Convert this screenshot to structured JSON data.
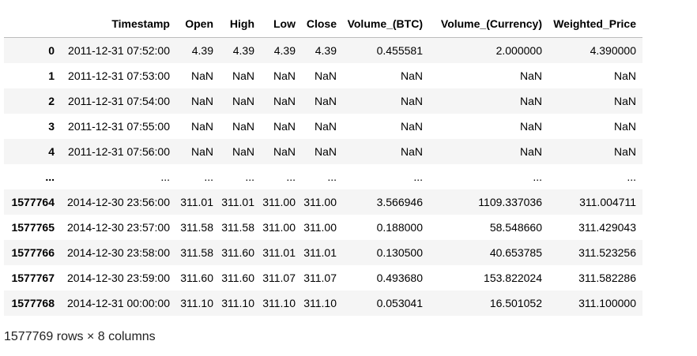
{
  "dataframe": {
    "columns": [
      "",
      "Timestamp",
      "Open",
      "High",
      "Low",
      "Close",
      "Volume_(BTC)",
      "Volume_(Currency)",
      "Weighted_Price"
    ],
    "rows": [
      [
        "0",
        "2011-12-31 07:52:00",
        "4.39",
        "4.39",
        "4.39",
        "4.39",
        "0.455581",
        "2.000000",
        "4.390000"
      ],
      [
        "1",
        "2011-12-31 07:53:00",
        "NaN",
        "NaN",
        "NaN",
        "NaN",
        "NaN",
        "NaN",
        "NaN"
      ],
      [
        "2",
        "2011-12-31 07:54:00",
        "NaN",
        "NaN",
        "NaN",
        "NaN",
        "NaN",
        "NaN",
        "NaN"
      ],
      [
        "3",
        "2011-12-31 07:55:00",
        "NaN",
        "NaN",
        "NaN",
        "NaN",
        "NaN",
        "NaN",
        "NaN"
      ],
      [
        "4",
        "2011-12-31 07:56:00",
        "NaN",
        "NaN",
        "NaN",
        "NaN",
        "NaN",
        "NaN",
        "NaN"
      ],
      [
        "...",
        "...",
        "...",
        "...",
        "...",
        "...",
        "...",
        "...",
        "..."
      ],
      [
        "1577764",
        "2014-12-30 23:56:00",
        "311.01",
        "311.01",
        "311.00",
        "311.00",
        "3.566946",
        "1109.337036",
        "311.004711"
      ],
      [
        "1577765",
        "2014-12-30 23:57:00",
        "311.58",
        "311.58",
        "311.00",
        "311.00",
        "0.188000",
        "58.548660",
        "311.429043"
      ],
      [
        "1577766",
        "2014-12-30 23:58:00",
        "311.58",
        "311.60",
        "311.01",
        "311.01",
        "0.130500",
        "40.653785",
        "311.523256"
      ],
      [
        "1577767",
        "2014-12-30 23:59:00",
        "311.60",
        "311.60",
        "311.07",
        "311.07",
        "0.493680",
        "153.822024",
        "311.582286"
      ],
      [
        "1577768",
        "2014-12-31 00:00:00",
        "311.10",
        "311.10",
        "311.10",
        "311.10",
        "0.053041",
        "16.501052",
        "311.100000"
      ]
    ]
  },
  "shape_info": "1577769 rows × 8 columns",
  "colors": {
    "striped_row": "#f5f5f5",
    "header_border": "#bdbdbd",
    "text": "#000000"
  }
}
